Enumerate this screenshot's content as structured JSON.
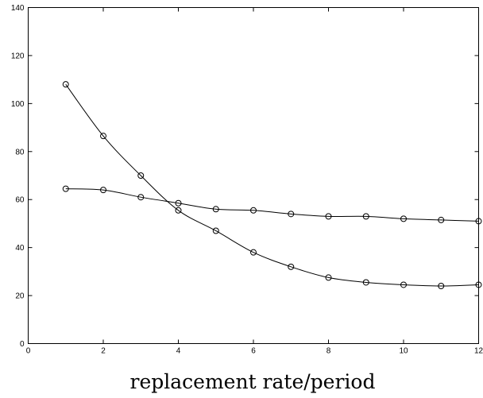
{
  "chart_data": {
    "type": "line",
    "title": "",
    "xlabel": "replacement rate/period",
    "ylabel": "",
    "xlim": [
      0,
      12
    ],
    "ylim": [
      0,
      140
    ],
    "xticks": [
      0,
      2,
      4,
      6,
      8,
      10,
      12
    ],
    "yticks": [
      0,
      20,
      40,
      60,
      80,
      100,
      120,
      140
    ],
    "grid": false,
    "legend": "none",
    "marker": "circle",
    "x": [
      1,
      2,
      3,
      4,
      5,
      6,
      7,
      8,
      9,
      10,
      11,
      12
    ],
    "series": [
      {
        "values": [
          108,
          86.5,
          70,
          55.5,
          47,
          38,
          32,
          27.5,
          25.5,
          24.5,
          24,
          24.5
        ]
      },
      {
        "values": [
          64.5,
          64,
          61,
          58.5,
          56,
          55.5,
          54,
          53,
          53,
          52,
          51.5,
          51
        ]
      }
    ]
  }
}
